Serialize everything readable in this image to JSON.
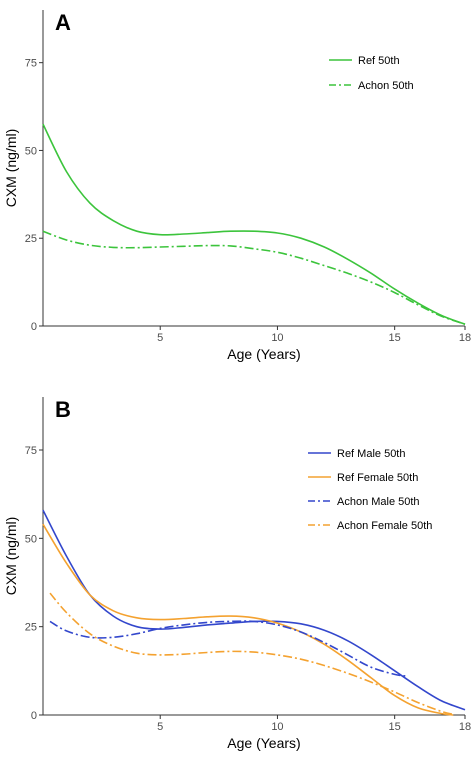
{
  "chart_data": [
    {
      "type": "line",
      "panel_label": "A",
      "xlabel": "Age (Years)",
      "ylabel": "CXM (ng/ml)",
      "xlim": [
        0,
        18
      ],
      "ylim": [
        0,
        90
      ],
      "xticks": [
        5,
        10,
        15,
        18
      ],
      "yticks": [
        0,
        25,
        50,
        75
      ],
      "grid": false,
      "legend_position": "top-right",
      "series": [
        {
          "name": "Ref 50th",
          "color": "#3cc43c",
          "dash": "solid",
          "x": [
            0,
            1,
            2,
            3,
            4,
            5,
            6,
            7,
            8,
            9,
            10,
            11,
            12,
            13,
            14,
            15,
            16,
            17,
            18
          ],
          "y": [
            57.5,
            44,
            35,
            30,
            27,
            26,
            26.2,
            26.6,
            27,
            27,
            26.5,
            25,
            22.5,
            19,
            15,
            10.5,
            6.5,
            3,
            0.5
          ]
        },
        {
          "name": "Achon 50th",
          "color": "#3cc43c",
          "dash": "dashdot",
          "x": [
            0,
            1,
            2,
            3,
            4,
            5,
            6,
            7,
            8,
            9,
            10,
            11,
            12,
            13,
            14,
            15,
            16,
            17,
            18
          ],
          "y": [
            27,
            24.5,
            23,
            22.4,
            22.3,
            22.5,
            22.7,
            22.9,
            22.8,
            22,
            21,
            19.3,
            17.2,
            15,
            12.5,
            9.5,
            6,
            2.8,
            0.5
          ]
        }
      ]
    },
    {
      "type": "line",
      "panel_label": "B",
      "xlabel": "Age (Years)",
      "ylabel": "CXM (ng/ml)",
      "xlim": [
        0,
        18
      ],
      "ylim": [
        0,
        90
      ],
      "xticks": [
        5,
        10,
        15,
        18
      ],
      "yticks": [
        0,
        25,
        50,
        75
      ],
      "grid": false,
      "legend_position": "top-right",
      "series": [
        {
          "name": "Ref Male 50th",
          "color": "#3347cc",
          "dash": "solid",
          "x": [
            0,
            1,
            2,
            3,
            4,
            5,
            6,
            7,
            8,
            9,
            10,
            11,
            12,
            13,
            14,
            15,
            16,
            17,
            18
          ],
          "y": [
            58,
            45,
            34,
            28,
            25,
            24.3,
            24.8,
            25.5,
            26,
            26.5,
            26.5,
            25.8,
            24,
            21,
            17,
            12.5,
            8,
            4,
            1.5
          ]
        },
        {
          "name": "Ref Female 50th",
          "color": "#f4a230",
          "dash": "solid",
          "x": [
            0,
            1,
            2,
            3,
            4,
            5,
            6,
            7,
            8,
            9,
            10,
            11,
            12,
            13,
            14,
            15,
            16,
            17,
            17.5
          ],
          "y": [
            54,
            43,
            34,
            29.5,
            27.5,
            27,
            27.3,
            27.8,
            28,
            27.5,
            26,
            23.5,
            20,
            15.5,
            10.5,
            5.5,
            2,
            0.4,
            0
          ]
        },
        {
          "name": "Achon Male 50th",
          "color": "#3347cc",
          "dash": "dashdot",
          "x": [
            0.3,
            1,
            2,
            3,
            4,
            5,
            6,
            7,
            8,
            9,
            10,
            11,
            12,
            13,
            14,
            15,
            15.5
          ],
          "y": [
            26.5,
            23.8,
            22,
            22,
            23,
            24.5,
            25.5,
            26.2,
            26.5,
            26.5,
            25.5,
            23.5,
            20.5,
            17,
            13.5,
            11.5,
            11
          ]
        },
        {
          "name": "Achon Female 50th",
          "color": "#f4a230",
          "dash": "dashdot",
          "x": [
            0.3,
            1,
            2,
            3,
            4,
            5,
            6,
            7,
            8,
            9,
            10,
            11,
            12,
            13,
            14,
            15,
            16,
            17,
            17.5
          ],
          "y": [
            34.5,
            29,
            23,
            19.5,
            17.5,
            17,
            17.2,
            17.7,
            18,
            17.8,
            17,
            15.8,
            14,
            11.8,
            9.3,
            6.5,
            3.5,
            1,
            0.2
          ]
        }
      ]
    }
  ]
}
